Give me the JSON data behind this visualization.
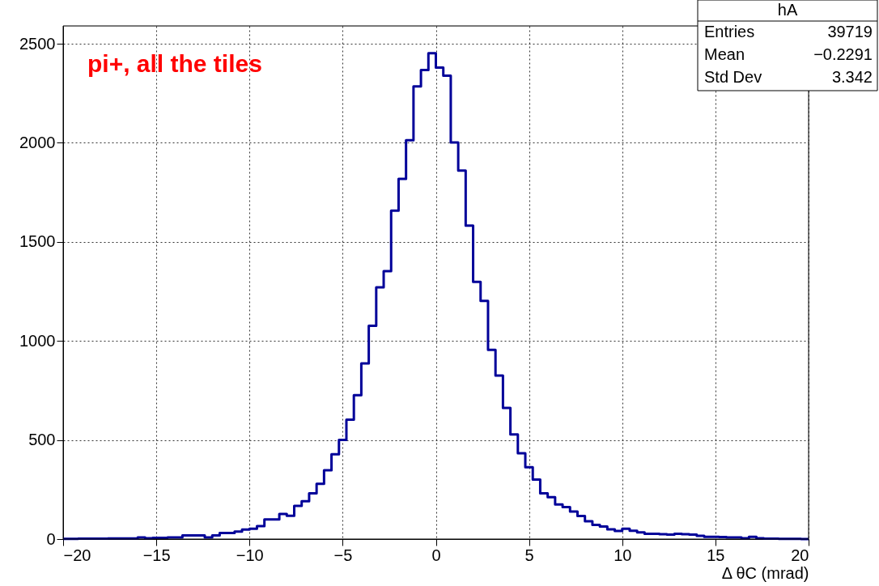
{
  "chart_data": {
    "type": "histogram",
    "xlabel": "Δ θC (mrad)",
    "annotations": [
      "pi+, all the tiles",
      "hA",
      "Entries",
      "39719",
      "Mean",
      "−0.2291",
      "Std Dev",
      "3.342"
    ],
    "bins": [
      -20,
      -19.6,
      -19.2,
      -18.8,
      -18.4,
      -18,
      -17.6,
      -17.2,
      -16.8,
      -16.4,
      -16,
      -15.6,
      -15.2,
      -14.8,
      -14.4,
      -14,
      -13.6,
      -13.2,
      -12.8,
      -12.4,
      -12,
      -11.6,
      -11.2,
      -10.8,
      -10.4,
      -10,
      -9.6,
      -9.2,
      -8.8,
      -8.4,
      -8,
      -7.6,
      -7.2,
      -6.8,
      -6.4,
      -6,
      -5.6,
      -5.2,
      -4.8,
      -4.4,
      -4,
      -3.6,
      -3.2,
      -2.8,
      -2.4,
      -2,
      -1.6,
      -1.2,
      -0.8,
      -0.4,
      0,
      0.4,
      0.8,
      1.2,
      1.6,
      2,
      2.4,
      2.8,
      3.2,
      3.6,
      4,
      4.4,
      4.8,
      5.2,
      5.6,
      6,
      6.4,
      6.8,
      7.2,
      7.6,
      8,
      8.4,
      8.8,
      9.2,
      9.6,
      10,
      10.4,
      10.8,
      11.2,
      11.6,
      12,
      12.4,
      12.8,
      13.2,
      13.6,
      14,
      14.4,
      14.8,
      15.2,
      15.6,
      16,
      16.4,
      16.8,
      17.2,
      17.6,
      18,
      18.4,
      18.8,
      19.2,
      19.6,
      20
    ],
    "values": [
      1,
      1,
      2,
      2,
      2,
      2,
      3,
      3,
      3,
      3,
      8,
      4,
      6,
      6,
      8,
      8,
      18,
      18,
      18,
      8,
      18,
      31,
      31,
      38,
      48,
      52,
      65,
      99,
      99,
      127,
      117,
      167,
      191,
      231,
      279,
      347,
      428,
      500,
      603,
      726,
      886,
      1076,
      1270,
      1352,
      1658,
      1818,
      2013,
      2285,
      2367,
      2452,
      2380,
      2339,
      2002,
      1860,
      1582,
      1298,
      1202,
      955,
      825,
      662,
      528,
      433,
      363,
      300,
      231,
      211,
      175,
      161,
      139,
      116,
      90,
      72,
      63,
      49,
      41,
      52,
      42,
      34,
      27,
      27,
      25,
      22,
      27,
      25,
      22,
      16,
      11,
      11,
      10,
      8,
      8,
      4,
      11,
      4,
      2,
      2,
      1,
      1,
      1,
      0
    ],
    "color": "#000099",
    "xlim": [
      -20,
      20
    ],
    "ylim": [
      0,
      2590
    ],
    "xticks": [
      -20,
      -15,
      -10,
      -5,
      0,
      5,
      10,
      15,
      20
    ],
    "yticks": [
      0,
      500,
      1000,
      1500,
      2000,
      2500
    ],
    "grid": true
  }
}
